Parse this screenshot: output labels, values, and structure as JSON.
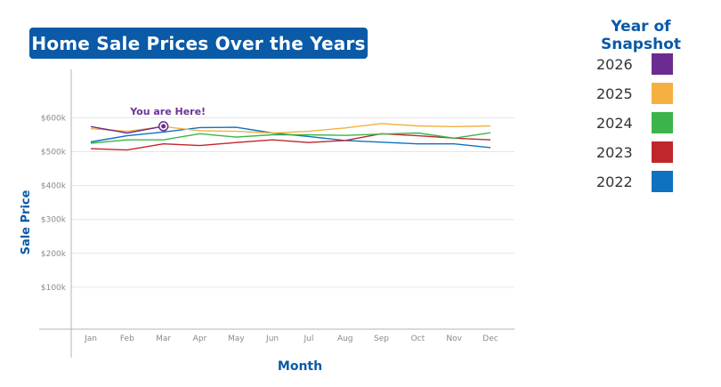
{
  "chart_data": {
    "type": "line",
    "title": "Home Sale Prices Over the Years",
    "xlabel": "Month",
    "ylabel": "Sale Price",
    "categories": [
      "Jan",
      "Feb",
      "Mar",
      "Apr",
      "May",
      "Jun",
      "Jul",
      "Aug",
      "Sep",
      "Oct",
      "Nov",
      "Dec"
    ],
    "yticks": [
      100000,
      200000,
      300000,
      400000,
      500000,
      600000
    ],
    "ytick_labels": [
      "$100k",
      "$200k",
      "$300k",
      "$400k",
      "$500k",
      "$600k"
    ],
    "ylim": [
      0,
      700000
    ],
    "grid": true,
    "legend_title": "Year of Snapshot",
    "legend_position": "right",
    "series": [
      {
        "name": "2026",
        "color": "#6a2c91",
        "values": [
          574000,
          555000,
          575000,
          null,
          null,
          null,
          null,
          null,
          null,
          null,
          null,
          null
        ]
      },
      {
        "name": "2025",
        "color": "#f5b041",
        "values": [
          568000,
          560000,
          574000,
          562000,
          560000,
          555000,
          560000,
          570000,
          583000,
          576000,
          574000,
          576000
        ]
      },
      {
        "name": "2024",
        "color": "#3cb44b",
        "values": [
          525000,
          535000,
          535000,
          553000,
          543000,
          550000,
          550000,
          548000,
          552000,
          555000,
          540000,
          556000
        ]
      },
      {
        "name": "2023",
        "color": "#c0272d",
        "values": [
          509000,
          505000,
          523000,
          518000,
          527000,
          535000,
          527000,
          533000,
          553000,
          547000,
          540000,
          535000
        ]
      },
      {
        "name": "2022",
        "color": "#0e72c0",
        "values": [
          529000,
          547000,
          558000,
          571000,
          572000,
          555000,
          545000,
          533000,
          528000,
          523000,
          523000,
          512000
        ]
      }
    ],
    "annotations": [
      {
        "text": "You are Here!",
        "series": "2026",
        "category": "Mar"
      }
    ]
  }
}
